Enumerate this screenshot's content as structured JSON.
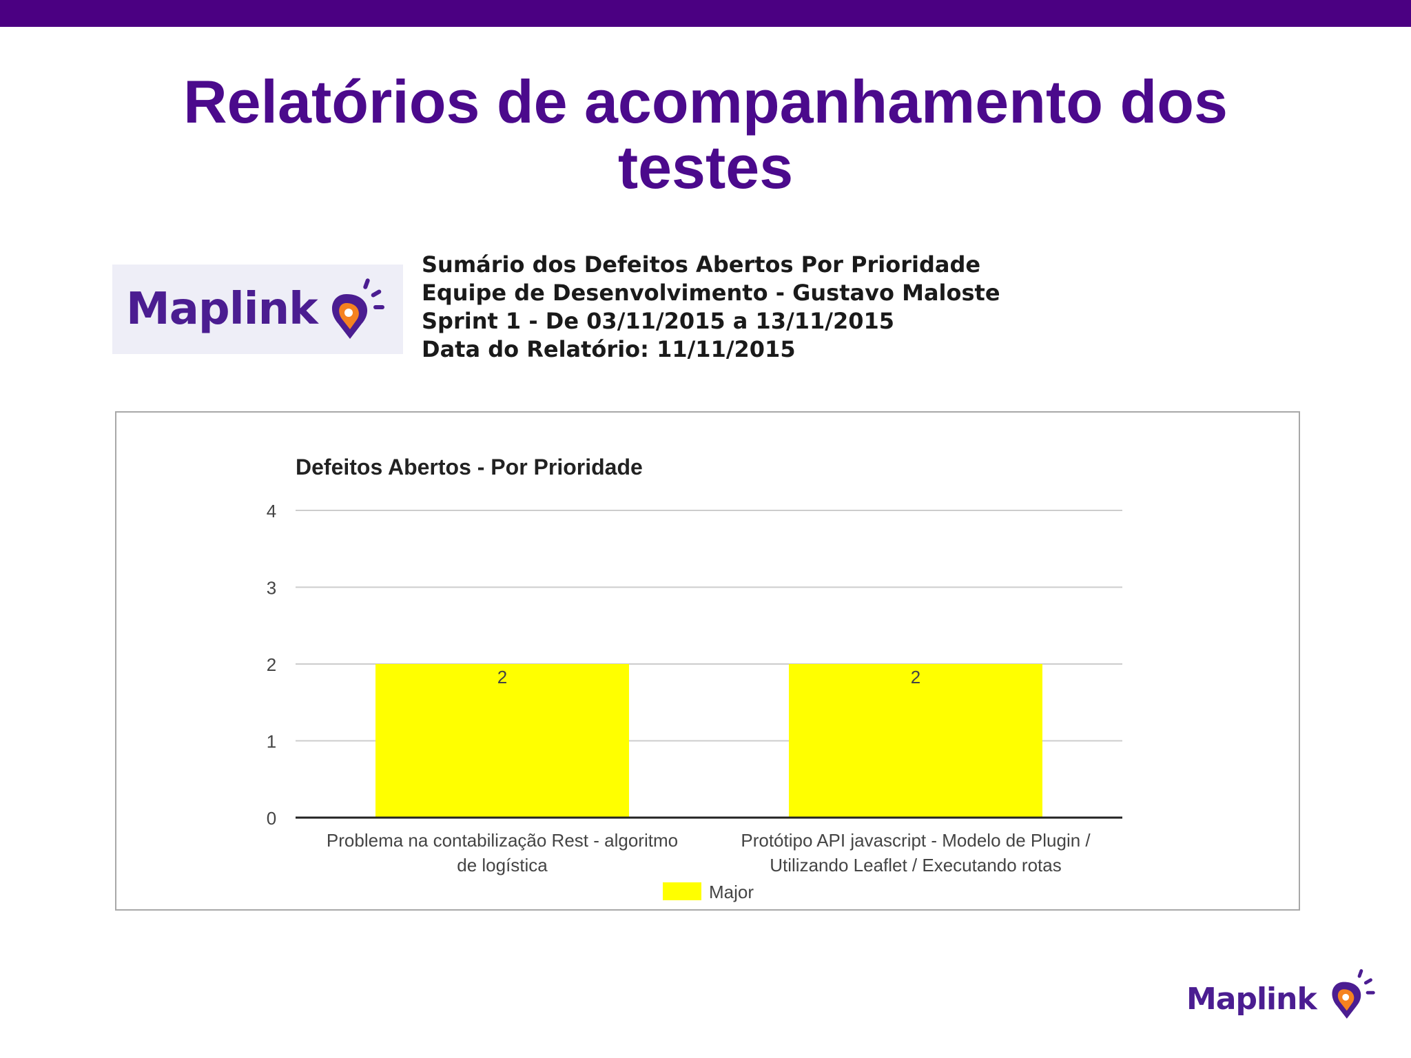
{
  "slide": {
    "title_line1": "Relatórios de acompanhamento dos",
    "title_line2": "testes"
  },
  "logo": {
    "text": "Maplink"
  },
  "report": {
    "line1": "Sumário dos Defeitos Abertos Por Prioridade",
    "line2": "Equipe de Desenvolvimento - Gustavo Maloste",
    "line3": "Sprint 1 - De 03/11/2015 a 13/11/2015",
    "line4": "Data do Relatório: 11/11/2015"
  },
  "footer": {
    "logo_text": "Maplink"
  },
  "colors": {
    "brand_purple": "#4b0a8c",
    "top_bar": "#4b0082",
    "bar_fill": "#ffff00",
    "logo_orange": "#f58220"
  },
  "chart_data": {
    "type": "bar",
    "title": "Defeitos Abertos - Por Prioridade",
    "categories": [
      [
        "Problema na contabilização Rest - algoritmo",
        "de logística"
      ],
      [
        "Protótipo API javascript - Modelo de Plugin /",
        "Utilizando Leaflet / Executando rotas"
      ]
    ],
    "series": [
      {
        "name": "Major",
        "values": [
          2,
          2
        ],
        "color": "#ffff00"
      }
    ],
    "data_labels": [
      "2",
      "2"
    ],
    "yticks": [
      0,
      1,
      2,
      3,
      4
    ],
    "ylim": [
      0,
      4
    ],
    "grid": true,
    "legend_position": "bottom"
  }
}
